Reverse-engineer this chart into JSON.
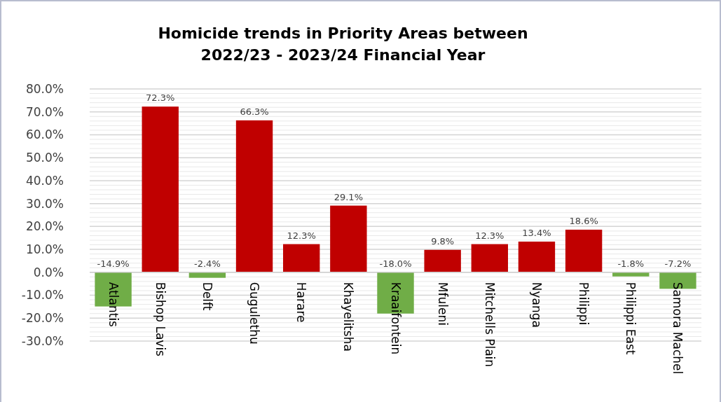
{
  "chart_data": {
    "type": "bar",
    "title": "Homicide trends in Priority Areas between\n2022/23 - 2023/24 Financial Year",
    "categories": [
      "Atlantis",
      "Bishop Lavis",
      "Delft",
      "Gugulethu",
      "Harare",
      "Khayelitsha",
      "Kraaifontein",
      "Mfuleni",
      "Mitchells Plain",
      "Nyanga",
      "Philippi",
      "Philippi East",
      "Samora Machel"
    ],
    "values": [
      -14.9,
      72.3,
      -2.4,
      66.3,
      12.3,
      29.1,
      -18.0,
      9.8,
      12.3,
      13.4,
      18.6,
      -1.8,
      -7.2
    ],
    "value_labels": [
      "-14.9%",
      "72.3%",
      "-2.4%",
      "66.3%",
      "12.3%",
      "29.1%",
      "-18.0%",
      "9.8%",
      "12.3%",
      "13.4%",
      "18.6%",
      "-1.8%",
      "-7.2%"
    ],
    "colors": [
      "#70ad47",
      "#c00000",
      "#70ad47",
      "#c00000",
      "#c00000",
      "#c00000",
      "#70ad47",
      "#c00000",
      "#c00000",
      "#c00000",
      "#c00000",
      "#70ad47",
      "#70ad47"
    ],
    "ylim": [
      -30,
      80
    ],
    "yticks": [
      {
        "value": -30,
        "label": "-30.0%"
      },
      {
        "value": -20,
        "label": "-20.0%"
      },
      {
        "value": -10,
        "label": "-10.0%"
      },
      {
        "value": 0,
        "label": "0.0%"
      },
      {
        "value": 10,
        "label": "10.0%"
      },
      {
        "value": 20,
        "label": "20.0%"
      },
      {
        "value": 30,
        "label": "30.0%"
      },
      {
        "value": 40,
        "label": "40.0%"
      },
      {
        "value": 50,
        "label": "50.0%"
      },
      {
        "value": 60,
        "label": "60.0%"
      },
      {
        "value": 70,
        "label": "70.0%"
      },
      {
        "value": 80,
        "label": "80.0%"
      }
    ],
    "grid": true
  }
}
